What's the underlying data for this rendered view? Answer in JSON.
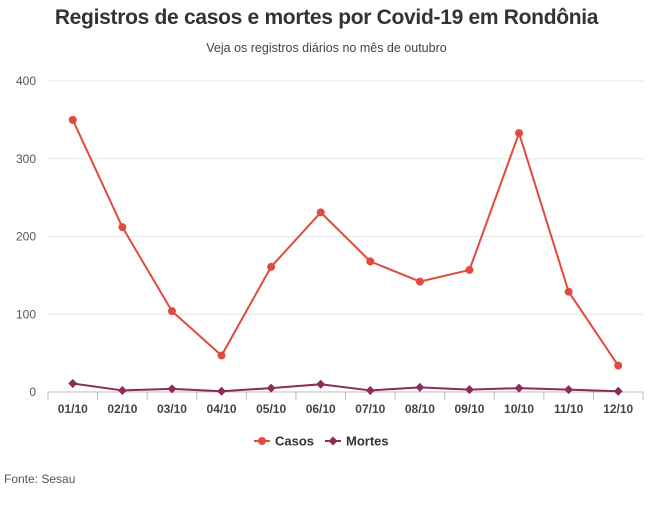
{
  "header": {
    "title": "Registros de casos e mortes por Covid-19 em Rondônia",
    "subtitle": "Veja os registros diários no mês de outubro"
  },
  "footer": {
    "source": "Fonte: Sesau"
  },
  "chart_data": {
    "type": "line",
    "categories": [
      "01/10",
      "02/10",
      "03/10",
      "04/10",
      "05/10",
      "06/10",
      "07/10",
      "08/10",
      "09/10",
      "10/10",
      "11/10",
      "12/10"
    ],
    "ylim": [
      0,
      400
    ],
    "yticks": [
      0,
      100,
      200,
      300,
      400
    ],
    "grid": true,
    "legend_position": "bottom-center",
    "series": [
      {
        "name": "Casos",
        "color": "#e04a3f",
        "marker": "circle",
        "values": [
          350,
          212,
          104,
          47,
          161,
          231,
          168,
          142,
          157,
          333,
          129,
          34
        ]
      },
      {
        "name": "Mortes",
        "color": "#8b2c5b",
        "marker": "diamond",
        "values": [
          11,
          2,
          4,
          1,
          5,
          10,
          2,
          6,
          3,
          5,
          3,
          1
        ]
      }
    ]
  }
}
